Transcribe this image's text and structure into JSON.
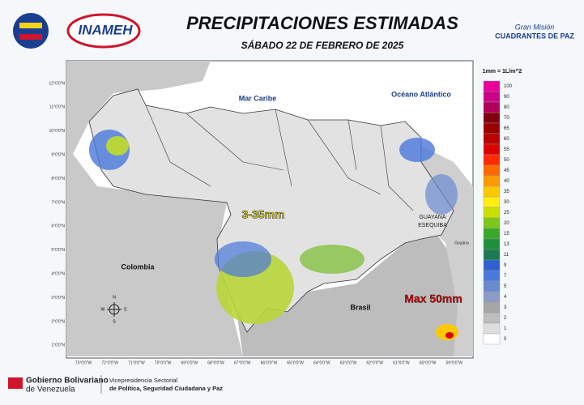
{
  "header": {
    "title": "PRECIPITACIONES ESTIMADAS",
    "subtitle": "SÁBADO 22 DE FEBRERO DE 2025",
    "logo_left": "INAMEH",
    "logo_right_top": "Gran Misión",
    "logo_right_bottom": "CUADRANTES DE PAZ"
  },
  "map": {
    "labels": {
      "sea_north": "Mar Caribe",
      "ocean": "Océano Atlántico",
      "colombia": "Colombia",
      "brasil": "Brasil",
      "guayana_1": "GUAYANA",
      "guayana_2": "ESEQUIBA",
      "guyana": "Guyana",
      "range": "3-35mm",
      "max": "Max 50mm"
    },
    "compass": [
      "N",
      "S",
      "E",
      "W"
    ],
    "lat_labels": [
      "12°0'0\"N",
      "11°0'0\"N",
      "10°0'0\"N",
      "9°0'0\"N",
      "8°0'0\"N",
      "7°0'0\"N",
      "6°0'0\"N",
      "5°0'0\"N",
      "4°0'0\"N",
      "3°0'0\"N",
      "2°0'0\"N",
      "1°0'0\"N"
    ],
    "lon_labels": [
      "73°0'0\"W",
      "72°0'0\"W",
      "71°0'0\"W",
      "70°0'0\"W",
      "69°0'0\"W",
      "68°0'0\"W",
      "67°0'0\"W",
      "66°0'0\"W",
      "65°0'0\"W",
      "64°0'0\"W",
      "63°0'0\"W",
      "62°0'0\"W",
      "61°0'0\"W",
      "60°0'0\"W",
      "59°0'0\"W"
    ]
  },
  "legend": {
    "unit": "1mm = 1L/m^2",
    "items": [
      {
        "value": 100,
        "color": "#e8009c"
      },
      {
        "value": 90,
        "color": "#cc0088"
      },
      {
        "value": 80,
        "color": "#b0005a"
      },
      {
        "value": 70,
        "color": "#800010"
      },
      {
        "value": 65,
        "color": "#9a0000"
      },
      {
        "value": 60,
        "color": "#bb0000"
      },
      {
        "value": 55,
        "color": "#dd0000"
      },
      {
        "value": 50,
        "color": "#ff2a00"
      },
      {
        "value": 45,
        "color": "#ff6a00"
      },
      {
        "value": 40,
        "color": "#ff9a00"
      },
      {
        "value": 35,
        "color": "#ffc800"
      },
      {
        "value": 30,
        "color": "#ffee10"
      },
      {
        "value": 25,
        "color": "#c8e000"
      },
      {
        "value": 20,
        "color": "#7cc81a"
      },
      {
        "value": 15,
        "color": "#3aa82a"
      },
      {
        "value": 13,
        "color": "#1f8f3a"
      },
      {
        "value": 11,
        "color": "#1a7a50"
      },
      {
        "value": 9,
        "color": "#2f5fd0"
      },
      {
        "value": 7,
        "color": "#4a78dc"
      },
      {
        "value": 5,
        "color": "#6a8ad0"
      },
      {
        "value": 4,
        "color": "#8c9cc8"
      },
      {
        "value": 3,
        "color": "#a6a6a6"
      },
      {
        "value": 2,
        "color": "#bdbdbd"
      },
      {
        "value": 1,
        "color": "#dedede"
      },
      {
        "value": 0,
        "color": "#ffffff"
      }
    ]
  },
  "footer": {
    "gov_1": "Gobierno Bolivariano",
    "gov_2": "de Venezuela",
    "vp_1": "Vicepresidencia Sectorial",
    "vp_2": "de Política, Seguridad Ciudadana y Paz"
  }
}
